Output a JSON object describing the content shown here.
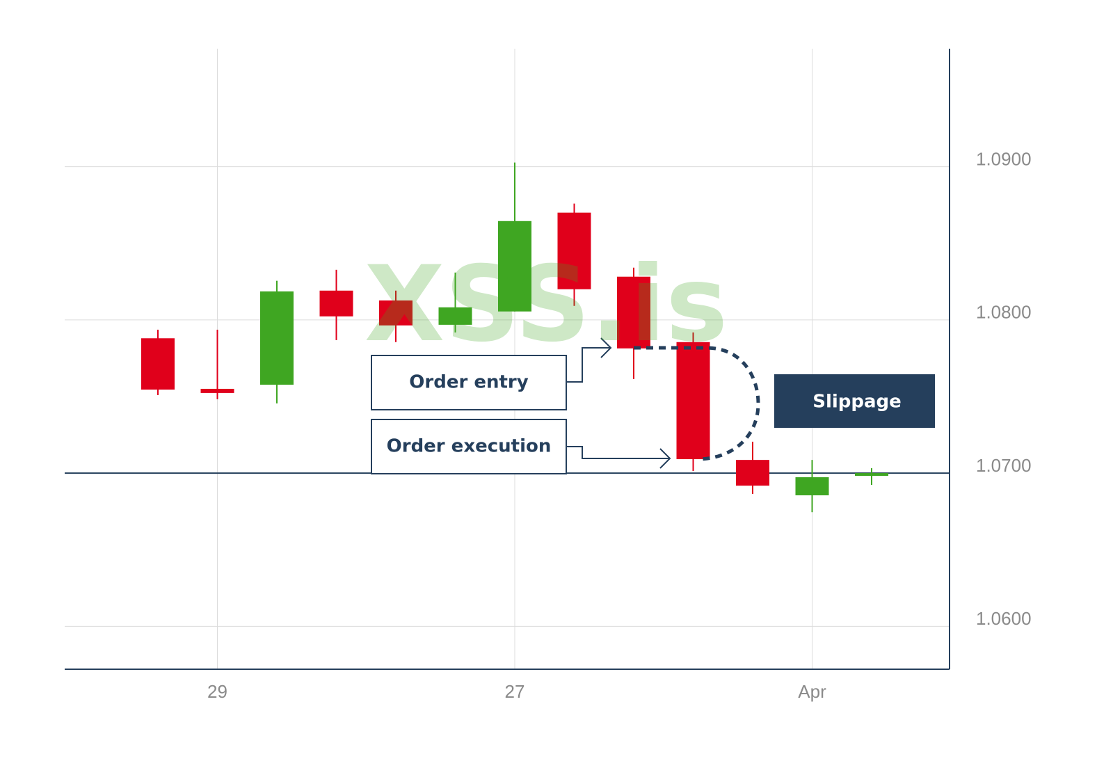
{
  "chart_data": {
    "type": "candlestick",
    "categories": [
      null,
      "29",
      null,
      null,
      null,
      null,
      "27",
      null,
      null,
      null,
      null,
      "Apr",
      null
    ],
    "open": [
      1.0788,
      1.0755,
      1.07577,
      1.08191,
      1.08127,
      1.07968,
      1.08055,
      1.087,
      1.08282,
      1.07855,
      1.07086,
      1.06855,
      1.06982
    ],
    "high": [
      1.07936,
      1.07936,
      1.08255,
      1.08327,
      1.08191,
      1.08309,
      1.09027,
      1.08759,
      1.08341,
      1.07918,
      1.07205,
      1.07086,
      1.07032
    ],
    "low": [
      1.07509,
      1.07482,
      1.07455,
      1.07868,
      1.07855,
      1.07918,
      1.08055,
      1.08091,
      1.07614,
      1.07014,
      1.06864,
      1.06745,
      1.06923
    ],
    "close": [
      1.07545,
      1.07523,
      1.08186,
      1.08023,
      1.07964,
      1.08082,
      1.08645,
      1.082,
      1.07814,
      1.07091,
      1.06918,
      1.06973,
      1.07
    ],
    "up_color": "#3fa622",
    "down_color": "#e0001b",
    "ylim": [
      1.0572,
      1.0977
    ],
    "yticks": [
      {
        "value": 1.06,
        "label": "1.0600"
      },
      {
        "value": 1.07,
        "label": "1.0700"
      },
      {
        "value": 1.08,
        "label": "1.0800"
      },
      {
        "value": 1.09,
        "label": "1.0900"
      }
    ],
    "reference_line": 1.07,
    "grid": true,
    "annotations": [
      "Order entry",
      "Order execution",
      "Slippage"
    ],
    "watermark": "XSS.is"
  }
}
